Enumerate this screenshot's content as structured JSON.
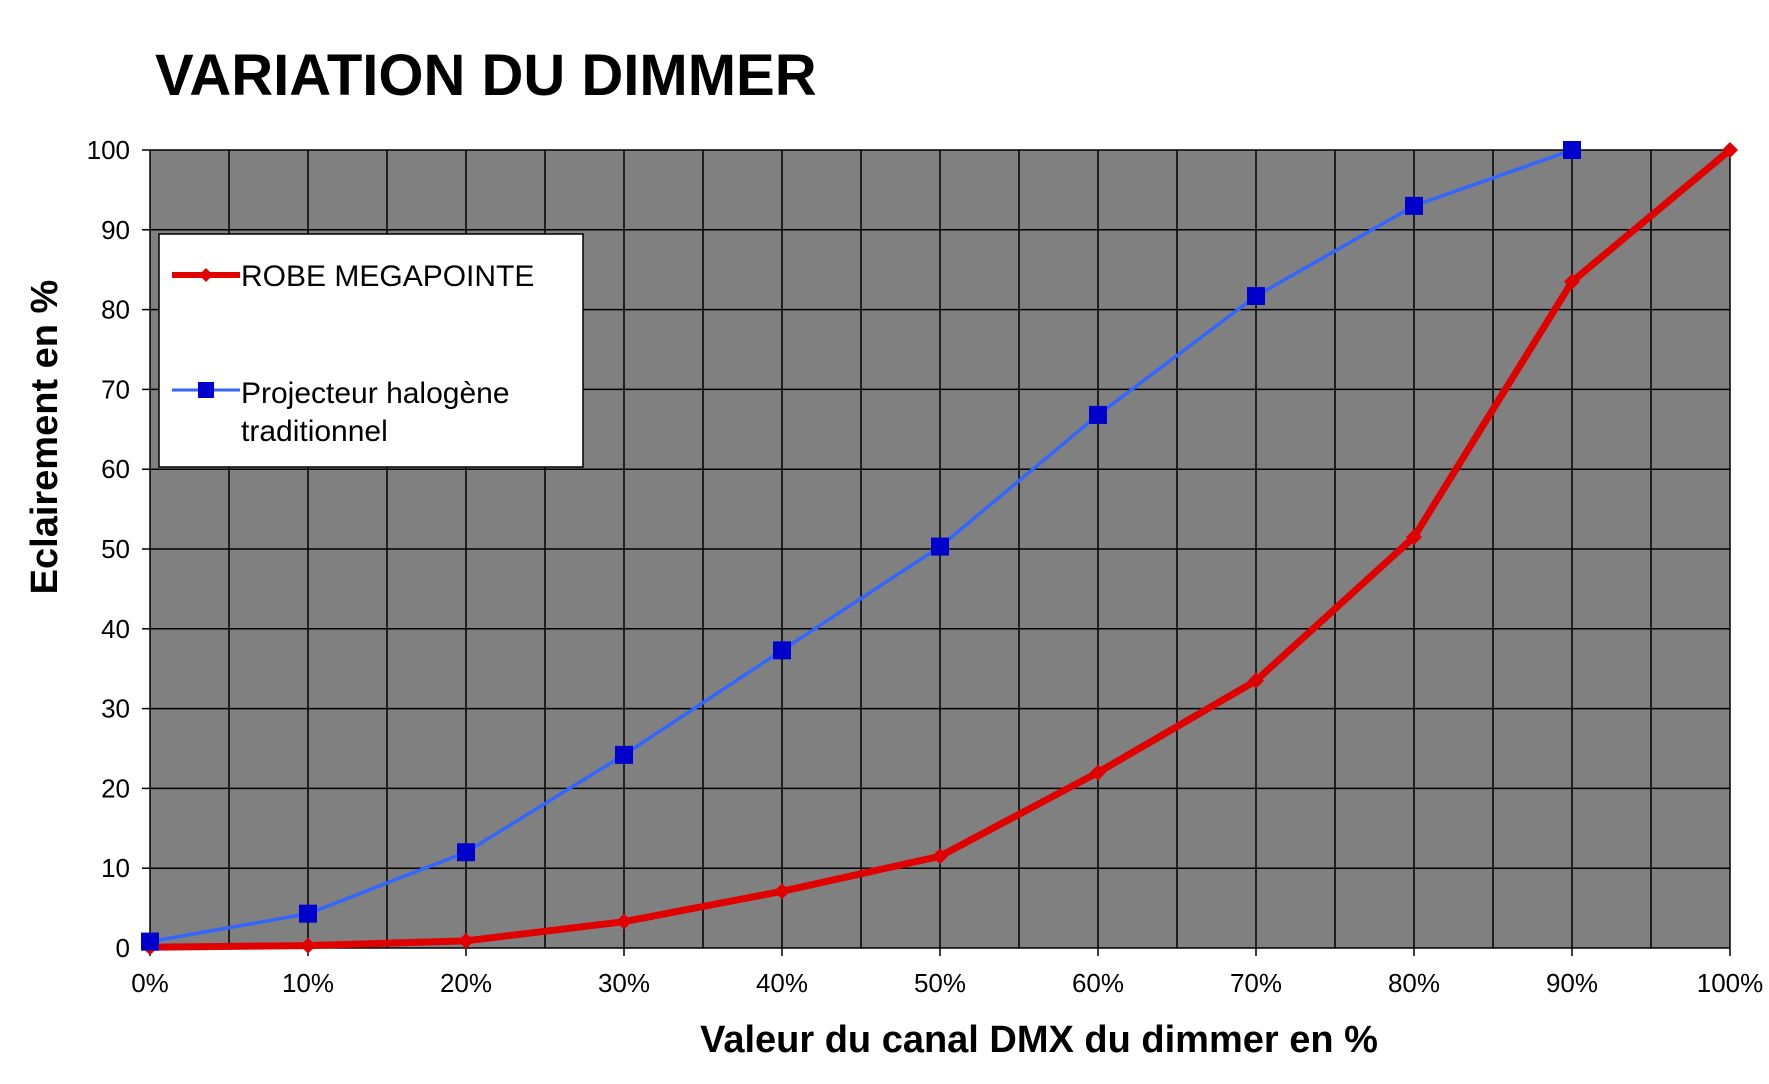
{
  "chart_data": {
    "type": "line",
    "title": "VARIATION DU DIMMER",
    "xlabel": "Valeur du canal DMX du dimmer en %",
    "ylabel": "Eclairement en %",
    "x": [
      0,
      10,
      20,
      30,
      40,
      50,
      60,
      70,
      80,
      90,
      100
    ],
    "x_tick_labels": [
      "0%",
      "10%",
      "20%",
      "30%",
      "40%",
      "50%",
      "60%",
      "70%",
      "80%",
      "90%",
      "100%"
    ],
    "y_ticks": [
      0,
      10,
      20,
      30,
      40,
      50,
      60,
      70,
      80,
      90,
      100
    ],
    "xlim": [
      0,
      100
    ],
    "ylim": [
      0,
      100
    ],
    "grid": true,
    "plot_background": "#808080",
    "legend_position": "top-left",
    "series": [
      {
        "name": "ROBE MEGAPOINTE",
        "color": "#e00000",
        "marker": "diamond",
        "x": [
          0,
          10,
          20,
          30,
          40,
          50,
          60,
          70,
          80,
          90,
          100
        ],
        "values": [
          0.1,
          0.3,
          0.9,
          3.3,
          7.1,
          11.5,
          22.0,
          33.5,
          51.5,
          83.5,
          100
        ]
      },
      {
        "name": "Projecteur halogène traditionnel",
        "legend_lines": [
          "Projecteur halogène",
          "traditionnel"
        ],
        "color": "#3366ff",
        "marker_color": "#0000cc",
        "marker": "square",
        "x": [
          0,
          10,
          20,
          30,
          40,
          50,
          60,
          70,
          80,
          90
        ],
        "values": [
          0.8,
          4.3,
          12.0,
          24.2,
          37.3,
          50.3,
          66.8,
          81.7,
          93.0,
          100
        ]
      }
    ]
  }
}
